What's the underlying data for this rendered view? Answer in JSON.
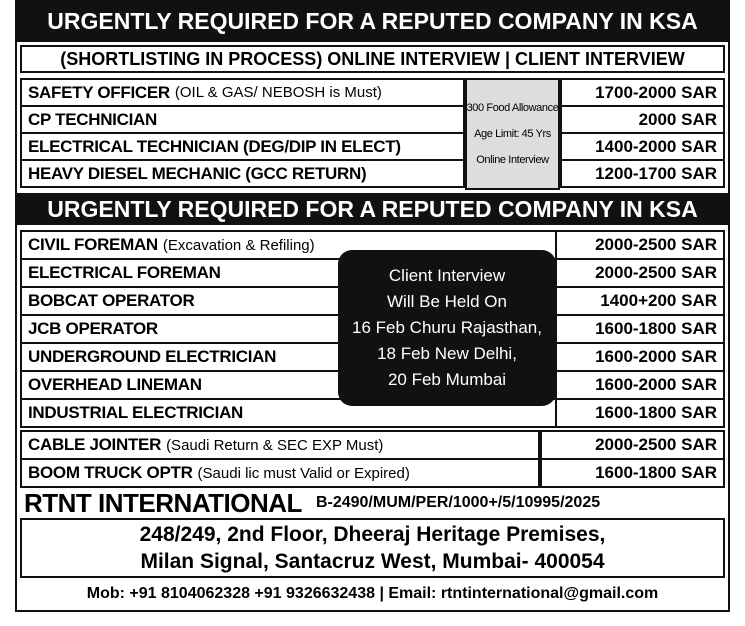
{
  "header": {
    "title": "URGENTLY REQUIRED FOR A REPUTED COMPANY IN KSA",
    "subtitle": "(SHORTLISTING IN PROCESS) ONLINE INTERVIEW | CLIENT INTERVIEW"
  },
  "section1": {
    "rows": [
      {
        "title": "SAFETY OFFICER",
        "detail": "(OIL & GAS/ NEBOSH is Must)",
        "salary": "1700-2000 SAR"
      },
      {
        "title": "CP TECHNICIAN",
        "detail": "",
        "salary": "2000 SAR"
      },
      {
        "title": "ELECTRICAL TECHNICIAN (DEG/DIP IN ELECT)",
        "detail": "",
        "salary": "1400-2000 SAR"
      },
      {
        "title": "HEAVY DIESEL MECHANIC (GCC RETURN)",
        "detail": "",
        "salary": "1200-1700 SAR"
      }
    ],
    "notes": [
      "300 Food Allowance",
      "Age Limit: 45 Yrs",
      "Online Interview"
    ]
  },
  "section2": {
    "title": "URGENTLY REQUIRED FOR A REPUTED COMPANY IN KSA",
    "rows": [
      {
        "title": "CIVIL FOREMAN",
        "detail": "(Excavation & Refiling)",
        "salary": "2000-2500 SAR"
      },
      {
        "title": "ELECTRICAL FOREMAN",
        "detail": "",
        "salary": "2000-2500 SAR"
      },
      {
        "title": "BOBCAT OPERATOR",
        "detail": "",
        "salary": "1400+200 SAR"
      },
      {
        "title": "JCB OPERATOR",
        "detail": "",
        "salary": "1600-1800 SAR"
      },
      {
        "title": "UNDERGROUND ELECTRICIAN",
        "detail": "",
        "salary": "1600-2000 SAR"
      },
      {
        "title": "OVERHEAD LINEMAN",
        "detail": "",
        "salary": "1600-2000 SAR"
      },
      {
        "title": "INDUSTRIAL ELECTRICIAN",
        "detail": "",
        "salary": "1600-1800 SAR"
      }
    ],
    "notes": [
      "Client Interview",
      "Will Be Held On",
      "16 Feb Churu Rajasthan,",
      "18 Feb New Delhi,",
      "20 Feb Mumbai"
    ]
  },
  "section3": {
    "rows": [
      {
        "title": "CABLE JOINTER",
        "detail": "(Saudi Return & SEC EXP Must)",
        "salary": "2000-2500 SAR"
      },
      {
        "title": "BOOM TRUCK OPTR",
        "detail": "(Saudi lic must Valid or Expired)",
        "salary": "1600-1800 SAR"
      }
    ]
  },
  "footer": {
    "company": "RTNT INTERNATIONAL",
    "license": "B-2490/MUM/PER/1000+/5/10995/2025",
    "address": [
      "248/249, 2nd Floor, Dheeraj Heritage Premises,",
      "Milan Signal, Santacruz West, Mumbai- 400054"
    ],
    "contact": "Mob: +91 8104062328 +91 9326632438 | Email: rtntinternational@gmail.com"
  }
}
